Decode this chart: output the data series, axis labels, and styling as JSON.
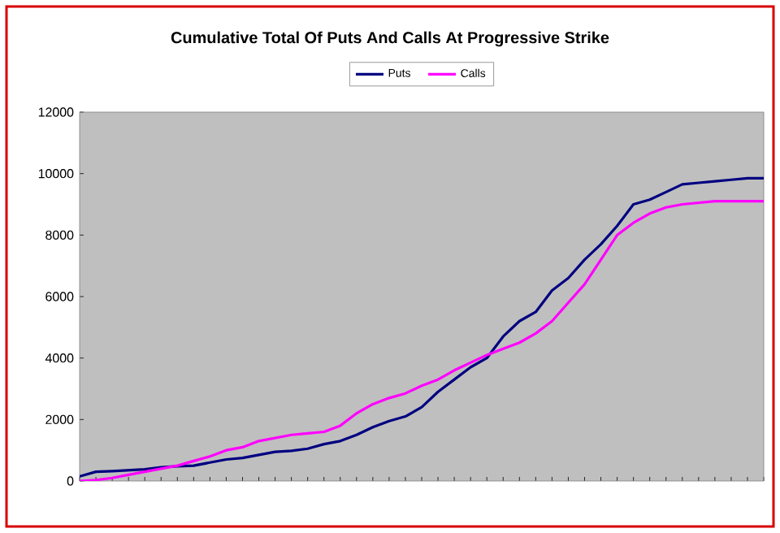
{
  "chart_data": {
    "type": "line",
    "title": "Cumulative Total Of Puts And Calls At Progressive Strike",
    "categories": [
      null,
      null,
      null,
      null,
      null,
      null,
      null,
      null,
      null,
      null,
      null,
      null,
      null,
      null,
      null,
      null,
      null,
      null,
      null,
      null,
      null,
      null,
      null,
      null,
      null,
      null,
      null,
      null,
      null,
      null,
      null,
      null,
      null,
      null,
      null,
      null,
      null,
      null,
      null,
      null,
      null,
      null,
      null
    ],
    "series": [
      {
        "name": "Puts",
        "color": "#000080",
        "values": [
          150,
          300,
          320,
          350,
          380,
          450,
          480,
          500,
          600,
          700,
          750,
          850,
          950,
          980,
          1050,
          1200,
          1300,
          1500,
          1750,
          1950,
          2100,
          2400,
          2900,
          3300,
          3700,
          4000,
          4700,
          5200,
          5500,
          6200,
          6600,
          7200,
          7700,
          8300,
          9000,
          9150,
          9400,
          9650,
          9700,
          9750,
          9800,
          9850,
          9850
        ]
      },
      {
        "name": "Calls",
        "color": "#ff00ff",
        "values": [
          0,
          30,
          100,
          200,
          300,
          400,
          500,
          650,
          800,
          1000,
          1100,
          1300,
          1400,
          1500,
          1550,
          1600,
          1800,
          2200,
          2500,
          2700,
          2850,
          3100,
          3300,
          3600,
          3850,
          4100,
          4300,
          4500,
          4800,
          5200,
          5800,
          6400,
          7200,
          8000,
          8400,
          8700,
          8900,
          9000,
          9050,
          9100,
          9100,
          9100,
          9100
        ]
      }
    ],
    "ylim": [
      0,
      12000
    ],
    "yticks": [
      0,
      2000,
      4000,
      6000,
      8000,
      10000,
      12000
    ],
    "tick_labels": "y",
    "legend": "top",
    "grid": false,
    "marker": "none",
    "line_style": "solid"
  }
}
